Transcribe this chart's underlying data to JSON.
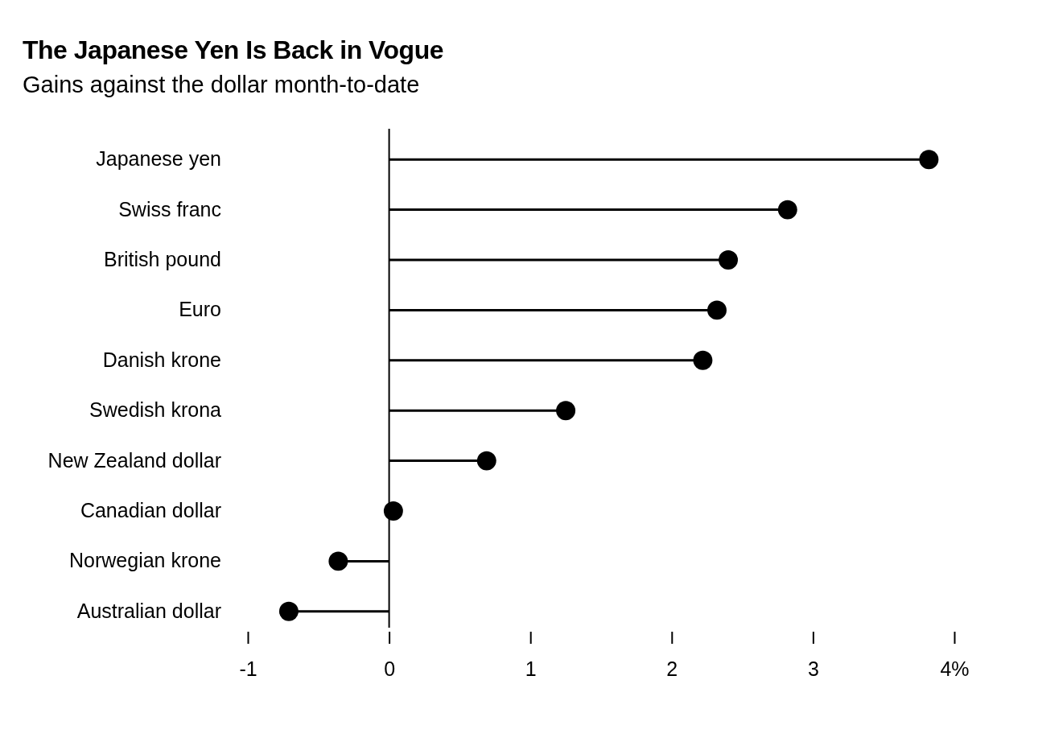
{
  "chart_data": {
    "type": "lollipop",
    "orientation": "horizontal",
    "title": "The Japanese Yen Is Back in Vogue",
    "subtitle": "Gains against the dollar month-to-date",
    "categories": [
      "Japanese yen",
      "Swiss franc",
      "British pound",
      "Euro",
      "Danish krone",
      "Swedish krona",
      "New Zealand dollar",
      "Canadian dollar",
      "Norwegian krone",
      "Australian dollar"
    ],
    "values": [
      3.82,
      2.82,
      2.4,
      2.32,
      2.22,
      1.25,
      0.69,
      0.03,
      -0.36,
      -0.71
    ],
    "color": "#000000",
    "marker": "circle",
    "xlim": [
      -1,
      4
    ],
    "xticks": [
      -1,
      0,
      1,
      2,
      3,
      {
        "value": 4,
        "label": "4%"
      }
    ]
  }
}
